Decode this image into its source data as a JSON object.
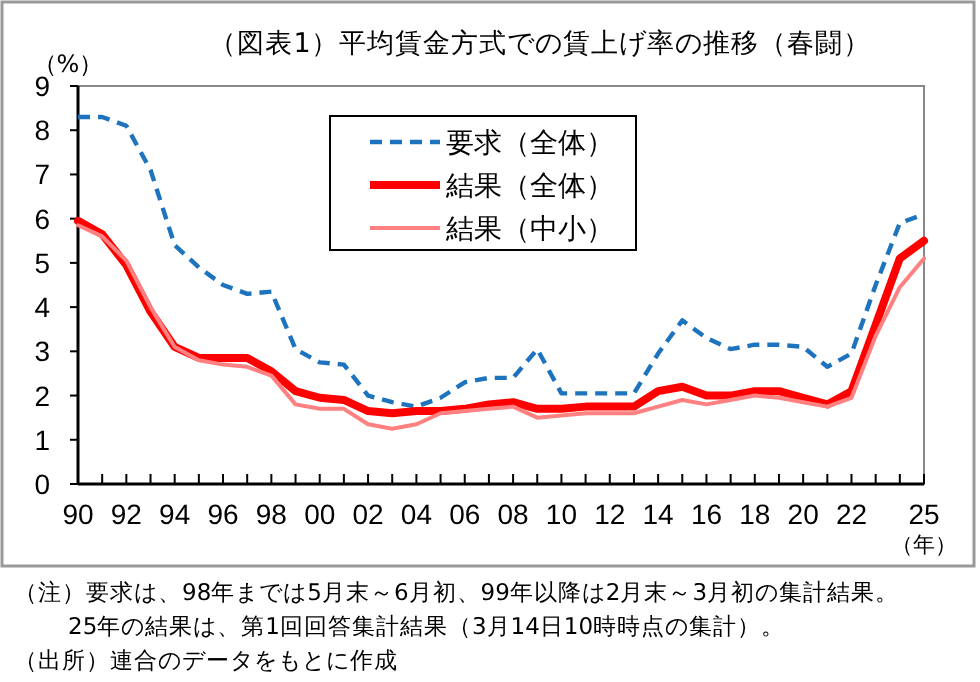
{
  "chart_data": {
    "type": "line",
    "title": "（図表1）平均賃金方式での賃上げ率の推移（春闘）",
    "ylabel": "（%）",
    "xlabel": "（年）",
    "x": [
      1990,
      1991,
      1992,
      1993,
      1994,
      1995,
      1996,
      1997,
      1998,
      1999,
      2000,
      2001,
      2002,
      2003,
      2004,
      2005,
      2006,
      2007,
      2008,
      2009,
      2010,
      2011,
      2012,
      2013,
      2014,
      2015,
      2016,
      2017,
      2018,
      2019,
      2020,
      2021,
      2022,
      2023,
      2024,
      2025
    ],
    "xlim": [
      1990,
      2025
    ],
    "xticks": [
      {
        "value": 1990,
        "label": "90"
      },
      {
        "value": 1991,
        "label": null
      },
      {
        "value": 1992,
        "label": "92"
      },
      {
        "value": 1993,
        "label": null
      },
      {
        "value": 1994,
        "label": "94"
      },
      {
        "value": 1995,
        "label": null
      },
      {
        "value": 1996,
        "label": "96"
      },
      {
        "value": 1997,
        "label": null
      },
      {
        "value": 1998,
        "label": "98"
      },
      {
        "value": 1999,
        "label": null
      },
      {
        "value": 2000,
        "label": "00"
      },
      {
        "value": 2001,
        "label": null
      },
      {
        "value": 2002,
        "label": "02"
      },
      {
        "value": 2003,
        "label": null
      },
      {
        "value": 2004,
        "label": "04"
      },
      {
        "value": 2005,
        "label": null
      },
      {
        "value": 2006,
        "label": "06"
      },
      {
        "value": 2007,
        "label": null
      },
      {
        "value": 2008,
        "label": "08"
      },
      {
        "value": 2009,
        "label": null
      },
      {
        "value": 2010,
        "label": "10"
      },
      {
        "value": 2011,
        "label": null
      },
      {
        "value": 2012,
        "label": "12"
      },
      {
        "value": 2013,
        "label": null
      },
      {
        "value": 2014,
        "label": "14"
      },
      {
        "value": 2015,
        "label": null
      },
      {
        "value": 2016,
        "label": "16"
      },
      {
        "value": 2017,
        "label": null
      },
      {
        "value": 2018,
        "label": "18"
      },
      {
        "value": 2019,
        "label": null
      },
      {
        "value": 2020,
        "label": "20"
      },
      {
        "value": 2021,
        "label": null
      },
      {
        "value": 2022,
        "label": "22"
      },
      {
        "value": 2023,
        "label": null
      },
      {
        "value": 2024,
        "label": null
      },
      {
        "value": 2025,
        "label": "25"
      }
    ],
    "ylim": [
      0,
      9
    ],
    "yticks": [
      0,
      1,
      2,
      3,
      4,
      5,
      6,
      7,
      8,
      9
    ],
    "legend": "top",
    "series": [
      {
        "name": "要求（全体）",
        "color": "#1e73be",
        "line_style": "dashed",
        "values": [
          8.3,
          8.3,
          8.1,
          7.1,
          5.4,
          4.9,
          4.5,
          4.3,
          4.35,
          3.05,
          2.75,
          2.7,
          2.0,
          1.85,
          1.75,
          1.95,
          2.3,
          2.4,
          2.4,
          3.05,
          2.05,
          2.05,
          2.05,
          2.05,
          2.95,
          3.7,
          3.3,
          3.05,
          3.15,
          3.15,
          3.1,
          2.65,
          2.95,
          4.5,
          5.9,
          6.1
        ]
      },
      {
        "name": "結果（全体）",
        "color": "#ff0000",
        "line_style": "solid",
        "values": [
          5.95,
          5.65,
          4.95,
          3.9,
          3.1,
          2.85,
          2.85,
          2.85,
          2.55,
          2.1,
          1.95,
          1.9,
          1.65,
          1.6,
          1.65,
          1.65,
          1.7,
          1.8,
          1.85,
          1.7,
          1.7,
          1.75,
          1.75,
          1.75,
          2.1,
          2.2,
          2.0,
          2.0,
          2.1,
          2.1,
          1.95,
          1.8,
          2.1,
          3.6,
          5.1,
          5.5
        ]
      },
      {
        "name": "結果（中小）",
        "color": "#ff8080",
        "line_style": "solid",
        "values": [
          5.85,
          5.6,
          5.05,
          4.0,
          3.1,
          2.8,
          2.7,
          2.65,
          2.45,
          1.8,
          1.7,
          1.7,
          1.35,
          1.25,
          1.35,
          1.6,
          1.65,
          1.7,
          1.75,
          1.5,
          1.55,
          1.6,
          1.6,
          1.6,
          1.75,
          1.9,
          1.8,
          1.9,
          2.0,
          1.95,
          1.85,
          1.75,
          1.95,
          3.35,
          4.45,
          5.1
        ]
      }
    ],
    "annotations": [
      "（注）要求は、98年までは5月末～6月初、99年以降は2月末～3月初の集計結果。",
      "25年の結果は、第1回回答集計結果（3月14日10時時点の集計）。",
      "（出所）連合のデータをもとに作成"
    ]
  }
}
